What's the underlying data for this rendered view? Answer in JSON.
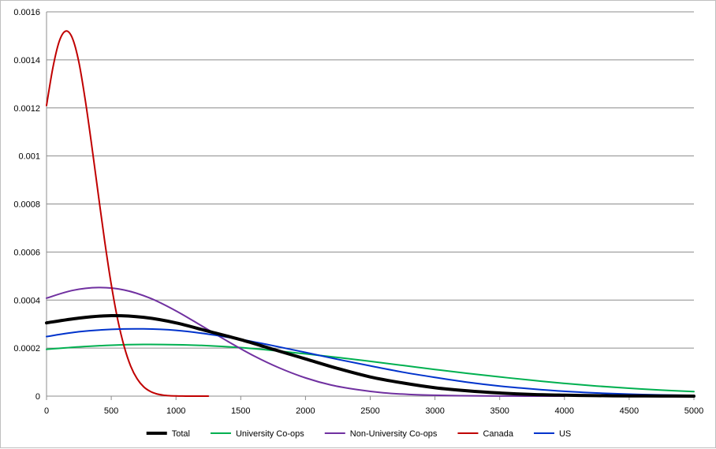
{
  "chart_data": {
    "type": "line",
    "title": "",
    "xlabel": "",
    "ylabel": "",
    "xlim": [
      0,
      5000
    ],
    "ylim": [
      0,
      0.0016
    ],
    "x_ticks": [
      0,
      500,
      1000,
      1500,
      2000,
      2500,
      3000,
      3500,
      4000,
      4500,
      5000
    ],
    "x_tick_labels": [
      "0",
      "500",
      "1000",
      "1500",
      "2000",
      "2500",
      "3000",
      "3500",
      "4000",
      "4500",
      "5000"
    ],
    "y_ticks": [
      0,
      0.0002,
      0.0004,
      0.0006,
      0.0008,
      0.001,
      0.0012,
      0.0014,
      0.0016
    ],
    "y_tick_labels": [
      "0",
      "0.0002",
      "0.0004",
      "0.0006",
      "0.0008",
      "0.001",
      "0.0012",
      "0.0014",
      "0.0016"
    ],
    "grid": "horizontal",
    "legend_position": "bottom",
    "series": [
      {
        "name": "Total",
        "color": "#000000",
        "width": 4,
        "x": [
          0,
          250,
          500,
          750,
          1000,
          1250,
          1500,
          1750,
          2000,
          2250,
          2500,
          2750,
          3000,
          3250,
          3500,
          3750,
          4000,
          4250,
          4500,
          4750,
          5000
        ],
        "y": [
          0.000305,
          0.000325,
          0.000335,
          0.000328,
          0.000305,
          0.00027,
          0.000235,
          0.000195,
          0.000155,
          0.000115,
          8e-05,
          5.5e-05,
          3.5e-05,
          2.2e-05,
          1.3e-05,
          7e-06,
          4e-06,
          2e-06,
          1e-06,
          5e-07,
          2e-07
        ]
      },
      {
        "name": "University Co-ops",
        "color": "#00b050",
        "width": 2,
        "x": [
          0,
          250,
          500,
          750,
          1000,
          1250,
          1500,
          1750,
          2000,
          2250,
          2500,
          2750,
          3000,
          3250,
          3500,
          3750,
          4000,
          4250,
          4500,
          4750,
          5000
        ],
        "y": [
          0.000195,
          0.000205,
          0.000212,
          0.000215,
          0.000214,
          0.00021,
          0.000202,
          0.00019,
          0.000176,
          0.000161,
          0.000145,
          0.000128,
          0.000111,
          9.5e-05,
          8e-05,
          6.6e-05,
          5.3e-05,
          4.2e-05,
          3.3e-05,
          2.5e-05,
          1.9e-05
        ]
      },
      {
        "name": "Non-University Co-ops",
        "color": "#7030a0",
        "width": 2,
        "x": [
          0,
          200,
          400,
          600,
          800,
          1000,
          1200,
          1400,
          1600,
          1800,
          2000,
          2200,
          2400,
          2600,
          2800,
          3000,
          3200,
          3400,
          3600,
          3800,
          4000
        ],
        "y": [
          0.000408,
          0.00044,
          0.000452,
          0.000442,
          0.000408,
          0.000355,
          0.000292,
          0.000228,
          0.000168,
          0.000117,
          7.6e-05,
          4.6e-05,
          2.7e-05,
          1.4e-05,
          7e-06,
          3.5e-06,
          1.6e-06,
          7e-07,
          3e-07,
          1e-07,
          5e-08
        ]
      },
      {
        "name": "Canada",
        "color": "#c00000",
        "width": 2,
        "x": [
          0,
          50,
          100,
          150,
          200,
          250,
          300,
          350,
          400,
          450,
          500,
          550,
          600,
          650,
          700,
          750,
          800,
          850,
          900,
          950,
          1000,
          1050,
          1100,
          1150,
          1200,
          1250
        ],
        "y": [
          0.00121,
          0.00137,
          0.00148,
          0.00152,
          0.00149,
          0.00139,
          0.00123,
          0.00104,
          0.000839,
          0.000642,
          0.000465,
          0.000318,
          0.000206,
          0.000125,
          7.2e-05,
          3.9e-05,
          2e-05,
          9.5e-06,
          4.3e-06,
          1.8e-06,
          7e-07,
          2.6e-07,
          9e-08,
          3e-08,
          1e-08,
          0.0
        ]
      },
      {
        "name": "US",
        "color": "#0033cc",
        "width": 2,
        "x": [
          0,
          250,
          500,
          750,
          1000,
          1250,
          1500,
          1750,
          2000,
          2250,
          2500,
          2750,
          3000,
          3250,
          3500,
          3750,
          4000,
          4250,
          4500,
          4750,
          5000
        ],
        "y": [
          0.000248,
          0.000268,
          0.000278,
          0.00028,
          0.000274,
          0.000258,
          0.000236,
          0.00021,
          0.000182,
          0.000153,
          0.000126,
          0.0001,
          7.8e-05,
          5.8e-05,
          4.2e-05,
          3e-05,
          2e-05,
          1.3e-05,
          8e-06,
          5e-06,
          3e-06
        ]
      }
    ]
  }
}
